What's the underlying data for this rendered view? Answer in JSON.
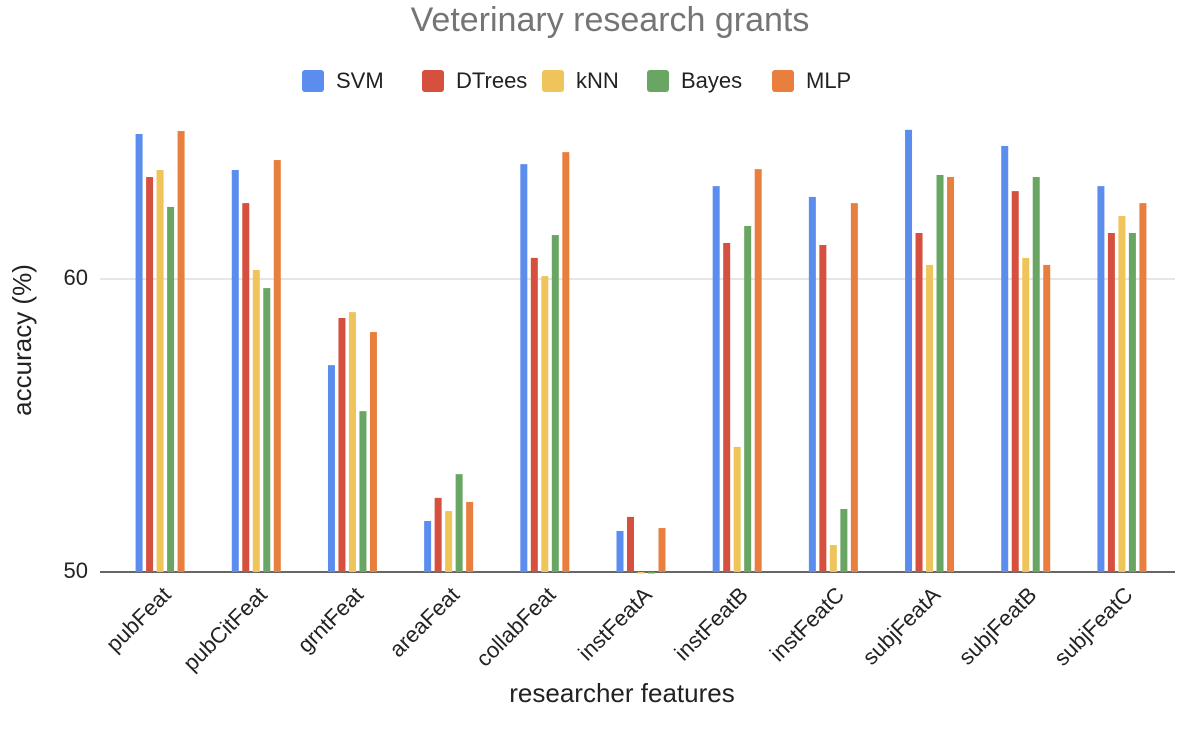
{
  "chart_data": {
    "type": "bar",
    "title": "Veterinary research grants",
    "x_label": "researcher features",
    "y_label": "accuracy (%)",
    "categories": [
      "pubFeat",
      "pubCitFeat",
      "grntFeat",
      "areaFeat",
      "collabFeat",
      "instFeatA",
      "instFeatB",
      "instFeatC",
      "subjFeatA",
      "subjFeatB",
      "subjFeatC"
    ],
    "series": [
      {
        "name": "SVM",
        "color": "#5b8def",
        "values": [
          64.95,
          63.72,
          57.06,
          51.74,
          63.92,
          51.4,
          63.17,
          62.8,
          65.09,
          64.54,
          63.17
        ]
      },
      {
        "name": "DTrees",
        "color": "#d6503f",
        "values": [
          63.48,
          62.59,
          58.67,
          52.53,
          60.72,
          51.88,
          61.23,
          61.16,
          61.57,
          63.0,
          61.57
        ]
      },
      {
        "name": "kNN",
        "color": "#efc45a",
        "values": [
          63.72,
          60.31,
          58.87,
          52.08,
          60.1,
          50,
          54.27,
          50.92,
          60.48,
          60.72,
          62.15
        ]
      },
      {
        "name": "Bayes",
        "color": "#6aa663",
        "values": [
          62.46,
          59.69,
          55.49,
          53.34,
          61.5,
          50.0,
          61.81,
          52.15,
          63.55,
          63.48,
          61.57
        ]
      },
      {
        "name": "MLP",
        "color": "#e97f3e",
        "values": [
          65.05,
          64.06,
          58.19,
          52.39,
          64.33,
          51.5,
          63.75,
          62.59,
          63.48,
          60.48,
          62.59
        ]
      }
    ],
    "ylim": [
      50,
      65.5
    ],
    "yticks": [
      50,
      60
    ],
    "grid": true,
    "legend": "top"
  }
}
